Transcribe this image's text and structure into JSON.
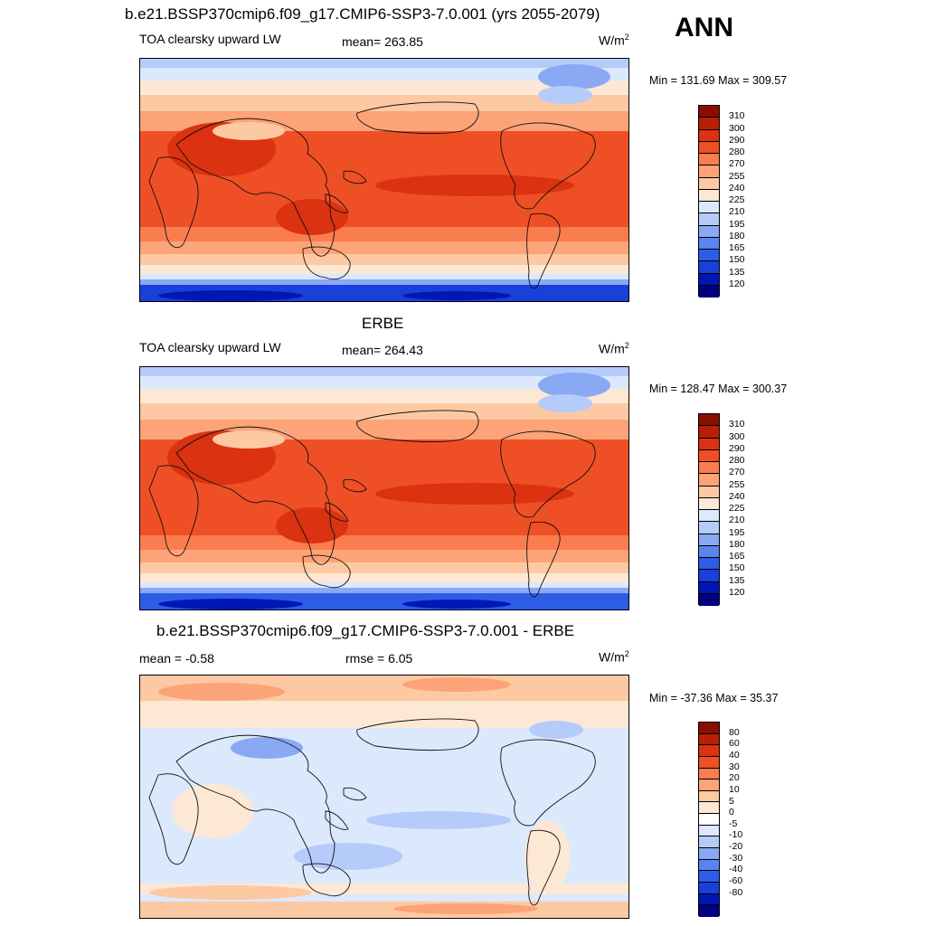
{
  "figure": {
    "season": "ANN",
    "units_base": "W/m",
    "units_sup": "2",
    "colors": {
      "abs": [
        "#000080",
        "#0017b5",
        "#1a3fdb",
        "#2d5ce6",
        "#5a85f0",
        "#89a9f5",
        "#b5cbfa",
        "#dce8fc",
        "#fde8d5",
        "#fdc9a3",
        "#fca477",
        "#fa7d50",
        "#ef4f25",
        "#db3211",
        "#b72006",
        "#8b0d00"
      ],
      "diff": [
        "#000080",
        "#0017b5",
        "#1a3fdb",
        "#2d5ce6",
        "#5a85f0",
        "#89a9f5",
        "#b5cbfa",
        "#dce8fc",
        "#ffffff",
        "#fde8d5",
        "#fdc9a3",
        "#fca477",
        "#fa7d50",
        "#ef4f25",
        "#db3211",
        "#b72006",
        "#8b0d00"
      ]
    }
  },
  "panels": [
    {
      "title": "b.e21.BSSP370cmip6.f09_g17.CMIP6-SSP3-7.0.001 (yrs 2055-2079)",
      "left_label": "TOA clearsky upward LW",
      "center_label": "mean= 263.85",
      "minmax": "Min = 131.69 Max = 309.57",
      "cbar_labels": [
        "310",
        "300",
        "290",
        "280",
        "270",
        "255",
        "240",
        "225",
        "210",
        "195",
        "180",
        "165",
        "150",
        "135",
        "120"
      ]
    },
    {
      "title": "ERBE",
      "left_label": "TOA clearsky upward LW",
      "center_label": "mean= 264.43",
      "minmax": "Min = 128.47 Max = 300.37",
      "cbar_labels": [
        "310",
        "300",
        "290",
        "280",
        "270",
        "255",
        "240",
        "225",
        "210",
        "195",
        "180",
        "165",
        "150",
        "135",
        "120"
      ]
    },
    {
      "title": "b.e21.BSSP370cmip6.f09_g17.CMIP6-SSP3-7.0.001 - ERBE",
      "left_label": "mean =  -0.58",
      "center_label": "rmse =   6.05",
      "minmax": "Min = -37.36 Max =  35.37",
      "cbar_labels": [
        "80",
        "60",
        "40",
        "30",
        "20",
        "10",
        "5",
        "0",
        "-5",
        "-10",
        "-20",
        "-30",
        "-40",
        "-60",
        "-80"
      ]
    }
  ]
}
